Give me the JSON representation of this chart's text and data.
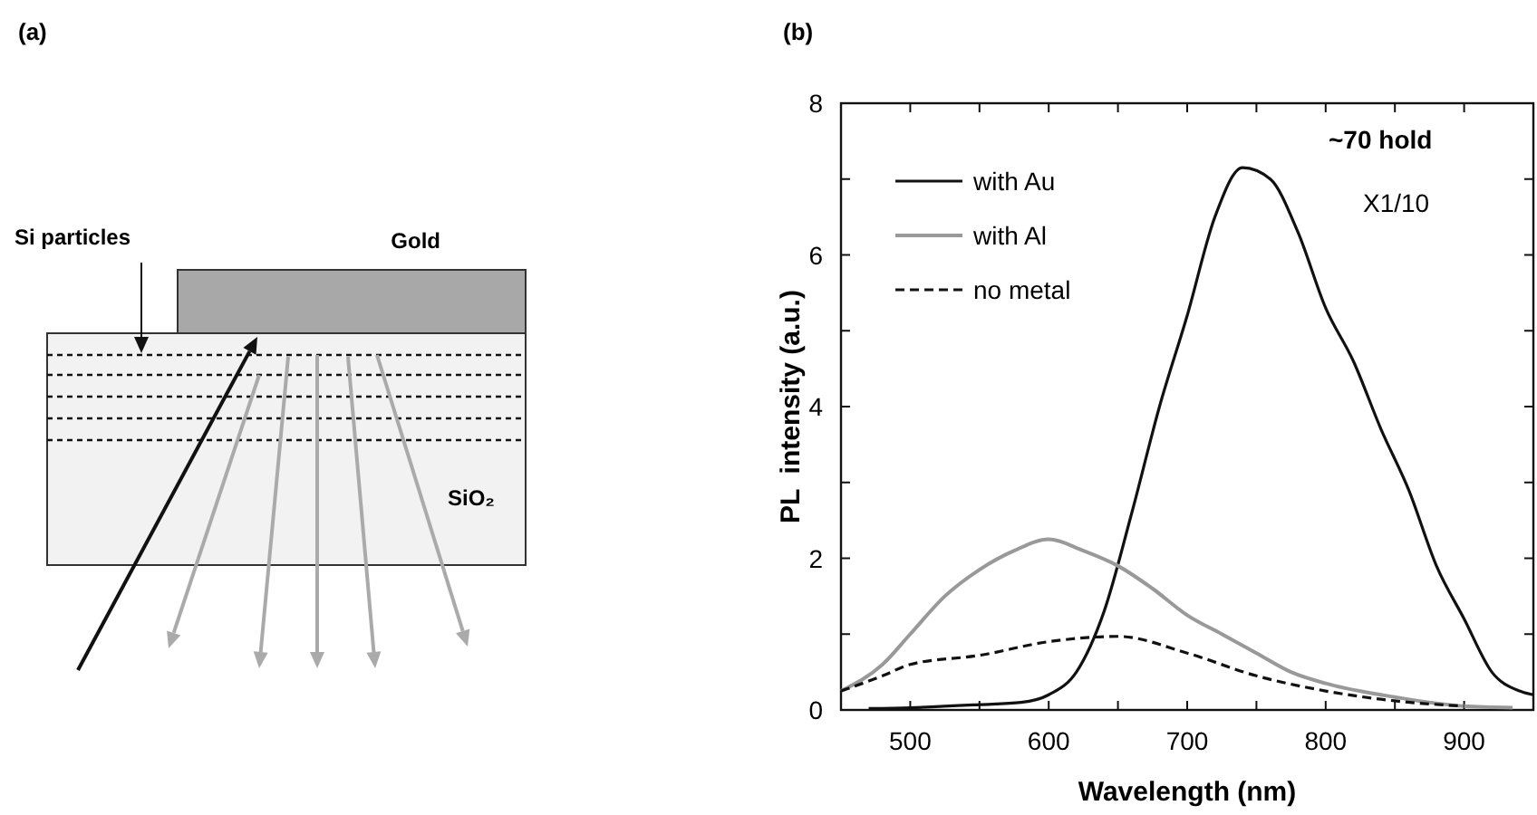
{
  "chart_data": [
    {
      "type": "other",
      "title": "(a)",
      "annotations": [
        "Si particles",
        "Gold",
        "SiO₂"
      ]
    },
    {
      "type": "line",
      "title": "(b)",
      "xlabel": "Wavelength (nm)",
      "ylabel": "PL  intensity (a.u.)",
      "xlim": [
        450,
        950
      ],
      "ylim": [
        0,
        8
      ],
      "xticks": [
        500,
        {
          "value": 550,
          "label": null
        },
        600,
        {
          "value": 650,
          "label": null
        },
        700,
        {
          "value": 750,
          "label": null
        },
        800,
        {
          "value": 850,
          "label": null
        },
        900
      ],
      "yticks": [
        0,
        {
          "value": 1,
          "label": null
        },
        2,
        {
          "value": 3,
          "label": null
        },
        4,
        {
          "value": 5,
          "label": null
        },
        6,
        {
          "value": 7,
          "label": null
        },
        8
      ],
      "grid": false,
      "legend": "top left",
      "marker": "none",
      "annotations": [
        "~70 hold",
        "X1/10"
      ],
      "series": [
        {
          "name": "with Au",
          "color": "#111111",
          "line_style": "solid",
          "x": [
            470,
            500,
            550,
            580,
            600,
            620,
            640,
            660,
            680,
            700,
            720,
            740,
            760,
            780,
            800,
            820,
            840,
            860,
            880,
            900,
            920,
            940,
            950
          ],
          "values": [
            0.02,
            0.03,
            0.07,
            0.1,
            0.2,
            0.5,
            1.3,
            2.6,
            4.0,
            5.2,
            6.5,
            7.15,
            7.0,
            6.3,
            5.3,
            4.6,
            3.7,
            2.9,
            1.9,
            1.2,
            0.5,
            0.25,
            0.2
          ]
        },
        {
          "name": "with Al",
          "color": "#999999",
          "line_style": "solid",
          "x": [
            450,
            480,
            500,
            525,
            550,
            575,
            600,
            625,
            650,
            675,
            700,
            725,
            750,
            775,
            800,
            850,
            900,
            935
          ],
          "values": [
            0.25,
            0.6,
            1.0,
            1.5,
            1.85,
            2.1,
            2.25,
            2.1,
            1.9,
            1.6,
            1.25,
            1.0,
            0.75,
            0.5,
            0.35,
            0.17,
            0.05,
            0.03
          ]
        },
        {
          "name": "no metal",
          "color": "#111111",
          "line_style": "dashed",
          "x": [
            450,
            480,
            500,
            550,
            600,
            650,
            700,
            750,
            800,
            850,
            900
          ],
          "values": [
            0.25,
            0.45,
            0.6,
            0.72,
            0.9,
            0.97,
            0.75,
            0.45,
            0.25,
            0.12,
            0.05
          ]
        }
      ]
    }
  ]
}
